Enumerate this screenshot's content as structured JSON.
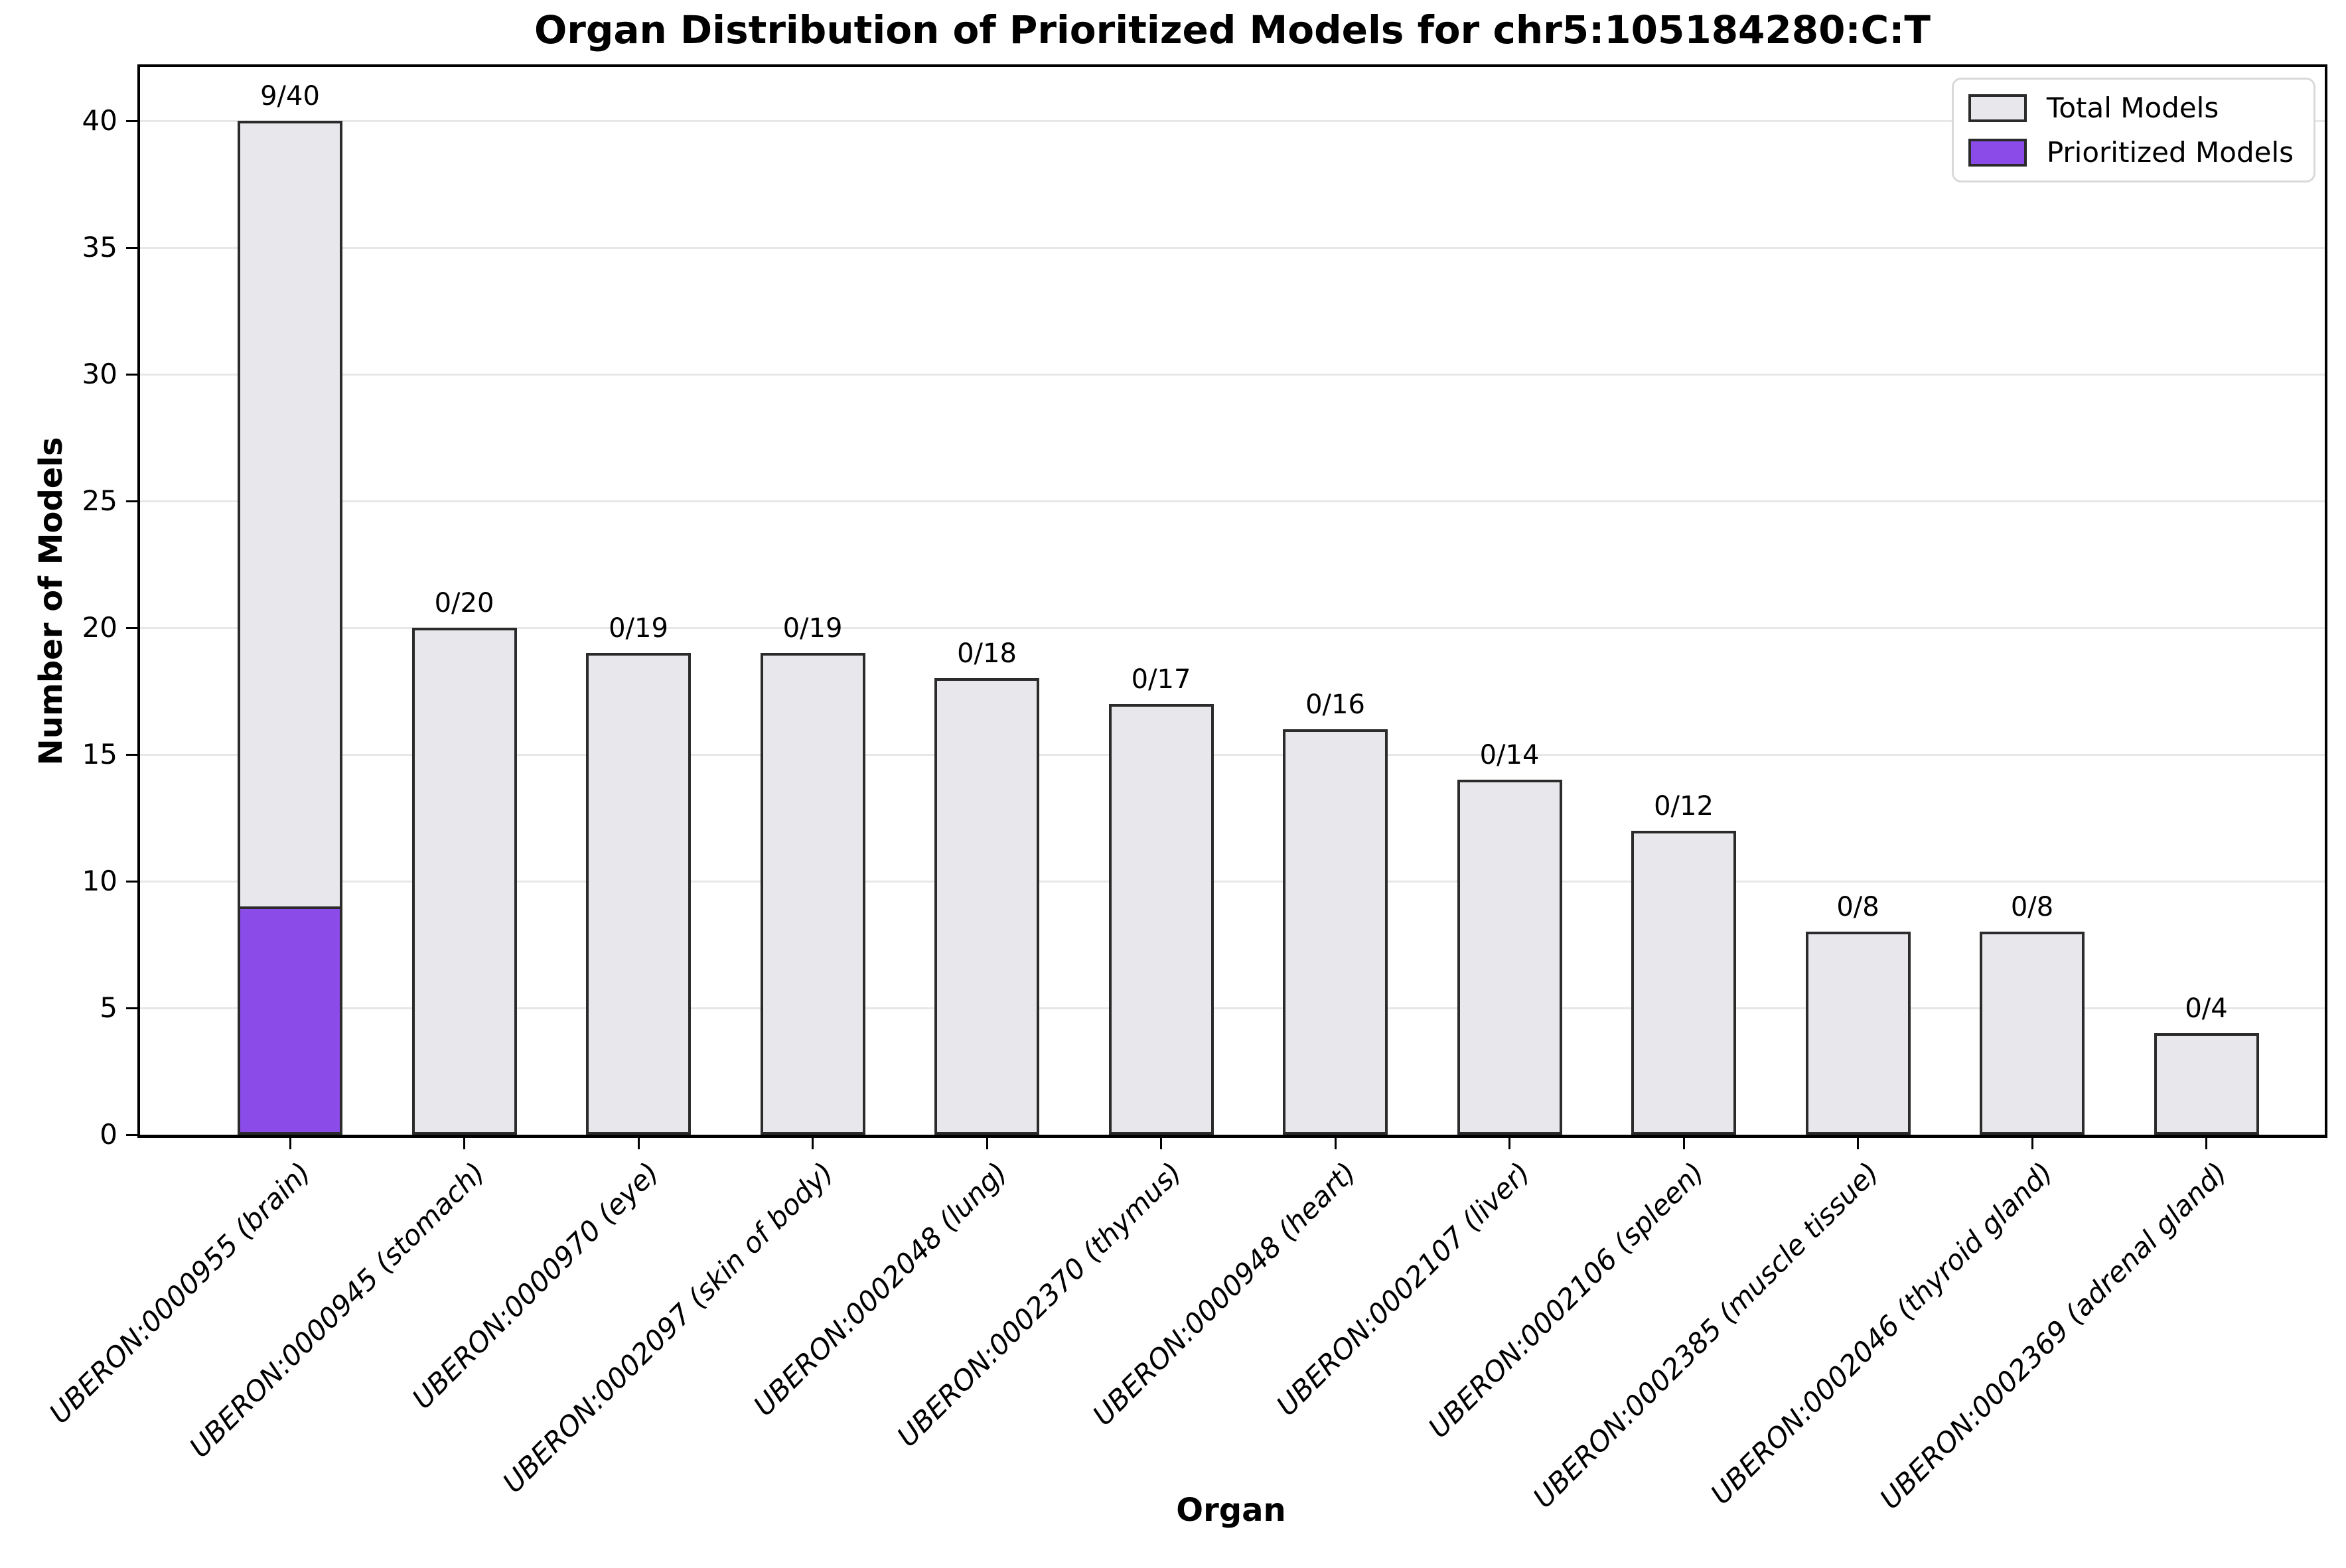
{
  "chart_data": {
    "type": "bar",
    "title": "Organ Distribution of Prioritized Models for chr5:105184280:C:T",
    "xlabel": "Organ",
    "ylabel": "Number of Models",
    "ylim": [
      0,
      42.1
    ],
    "yticks": [
      0,
      5,
      10,
      15,
      20,
      25,
      30,
      35,
      40
    ],
    "ytick_labels": [
      "0",
      "5",
      "10",
      "15",
      "20",
      "25",
      "30",
      "35",
      "40"
    ],
    "grid": "horizontal",
    "legend_position": "upper right",
    "categories": [
      "UBERON:0000955 (brain)",
      "UBERON:0000945 (stomach)",
      "UBERON:0000970 (eye)",
      "UBERON:0002097 (skin of body)",
      "UBERON:0002048 (lung)",
      "UBERON:0002370 (thymus)",
      "UBERON:0000948 (heart)",
      "UBERON:0002107 (liver)",
      "UBERON:0002106 (spleen)",
      "UBERON:0002385 (muscle tissue)",
      "UBERON:0002046 (thyroid gland)",
      "UBERON:0002369 (adrenal gland)"
    ],
    "series": [
      {
        "name": "Total Models",
        "values": [
          40,
          20,
          19,
          19,
          18,
          17,
          16,
          14,
          12,
          8,
          8,
          4
        ],
        "color": "#e8e8ec"
      },
      {
        "name": "Prioritized Models",
        "values": [
          9,
          0,
          0,
          0,
          0,
          0,
          0,
          0,
          0,
          0,
          0,
          0
        ],
        "color": "#8a4be8"
      }
    ],
    "bar_labels": [
      "9/40",
      "0/20",
      "0/19",
      "0/19",
      "0/18",
      "0/17",
      "0/16",
      "0/14",
      "0/12",
      "0/8",
      "0/8",
      "0/4"
    ],
    "legend": {
      "entries": [
        {
          "label": "Total Models",
          "color": "#e8e8ec"
        },
        {
          "label": "Prioritized Models",
          "color": "#8a4be8"
        }
      ]
    }
  },
  "colors": {
    "bar_total_fill": "#e8e8ec",
    "bar_prioritized_fill": "#8a4be8",
    "bar_edge": "#2b2b2b",
    "gridline": "#e7e7e7",
    "axis": "#000000",
    "legend_border": "#d9d9d9"
  }
}
